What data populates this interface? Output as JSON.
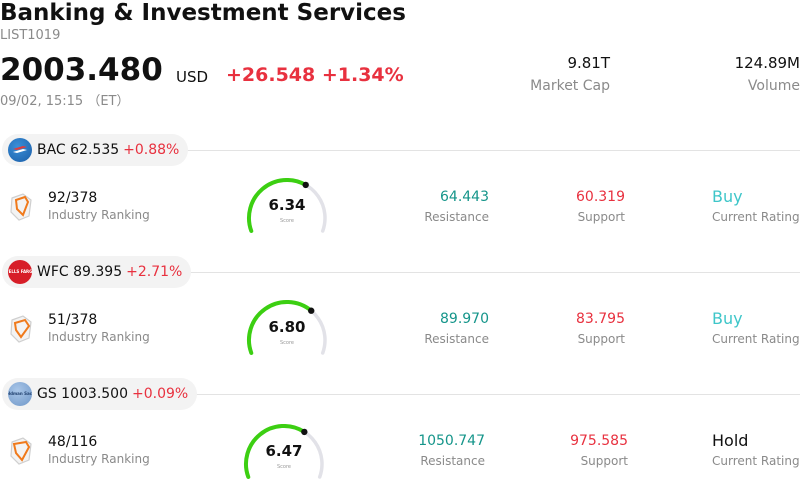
{
  "header": {
    "title": "Banking & Investment Services",
    "code": "LIST1019",
    "price": "2003.480",
    "currency": "USD",
    "change": "+26.548 +1.34%",
    "time": "09/02, 15:15 （ET）",
    "market_cap_value": "9.81T",
    "market_cap_label": "Market Cap",
    "volume_value": "124.89M",
    "volume_label": "Volume"
  },
  "stocks": [
    {
      "symbol": "BAC 62.535",
      "change": "+0.88%",
      "logo_text": "",
      "ranking": "92/378",
      "ranking_label": "Industry Ranking",
      "score": "6.34",
      "score_value": 6.34,
      "score_label": "Score",
      "resistance": "64.443",
      "resistance_label": "Resistance",
      "support": "60.319",
      "support_label": "Support",
      "rating": "Buy",
      "rating_label": "Current Rating"
    },
    {
      "symbol": "WFC 89.395",
      "change": "+2.71%",
      "logo_text": "WELLS FARGO",
      "ranking": "51/378",
      "ranking_label": "Industry Ranking",
      "score": "6.80",
      "score_value": 6.8,
      "score_label": "Score",
      "resistance": "89.970",
      "resistance_label": "Resistance",
      "support": "83.795",
      "support_label": "Support",
      "rating": "Buy",
      "rating_label": "Current Rating"
    },
    {
      "symbol": "GS 1003.500",
      "change": "+0.09%",
      "logo_text": "Goldman Sachs",
      "ranking": "48/116",
      "ranking_label": "Industry Ranking",
      "score": "6.47",
      "score_value": 6.47,
      "score_label": "Score",
      "resistance": "1050.747",
      "resistance_label": "Resistance",
      "support": "975.585",
      "support_label": "Support",
      "rating": "Hold",
      "rating_label": "Current Rating"
    }
  ],
  "colors": {
    "up": "#e8313f",
    "resistance": "#15958a",
    "buy": "#3ec6c9",
    "gauge_fill": "#3ccf12",
    "gauge_track": "#e2e2e8"
  }
}
